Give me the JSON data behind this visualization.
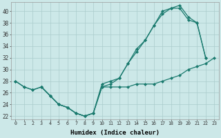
{
  "xlabel": "Humidex (Indice chaleur)",
  "bg_color": "#cce8e8",
  "grid_color": "#aacccc",
  "line_color": "#1a7a6e",
  "xlim": [
    -0.5,
    23.5
  ],
  "ylim": [
    21.5,
    41.5
  ],
  "xticks": [
    0,
    1,
    2,
    3,
    4,
    5,
    6,
    7,
    8,
    9,
    10,
    11,
    12,
    13,
    14,
    15,
    16,
    17,
    18,
    19,
    20,
    21,
    22,
    23
  ],
  "yticks": [
    22,
    24,
    26,
    28,
    30,
    32,
    34,
    36,
    38,
    40
  ],
  "line1_x": [
    0,
    1,
    2,
    3,
    4,
    5,
    6,
    7,
    8,
    9,
    10,
    11,
    12,
    13,
    14,
    15,
    16,
    17,
    18,
    19,
    20,
    21,
    22,
    23
  ],
  "line1_y": [
    28,
    27,
    26.5,
    27,
    25.5,
    24,
    23.5,
    22.5,
    22,
    22.5,
    27,
    27,
    27,
    27,
    27.5,
    27.5,
    27.5,
    28,
    28.5,
    29,
    30,
    30.5,
    31,
    32
  ],
  "line2_x": [
    0,
    1,
    2,
    3,
    4,
    5,
    6,
    7,
    8,
    9,
    10,
    11,
    12,
    13,
    14,
    15,
    16,
    17,
    18,
    19,
    20,
    21,
    22
  ],
  "line2_y": [
    28,
    27,
    26.5,
    27,
    25.5,
    24,
    23.5,
    22.5,
    22,
    22.5,
    27,
    27.5,
    28.5,
    31,
    33,
    35,
    37.5,
    39.5,
    40.5,
    40.5,
    38.5,
    38,
    32
  ],
  "line3_x": [
    3,
    4,
    5,
    6,
    7,
    8,
    9,
    10,
    11,
    12,
    13,
    14,
    15,
    16,
    17,
    18,
    19,
    20,
    21,
    22
  ],
  "line3_y": [
    27,
    25.5,
    24,
    23.5,
    22.5,
    22,
    22.5,
    27.5,
    28,
    28.5,
    31,
    33.5,
    35,
    37.5,
    40,
    40.5,
    41,
    39,
    38,
    32
  ]
}
